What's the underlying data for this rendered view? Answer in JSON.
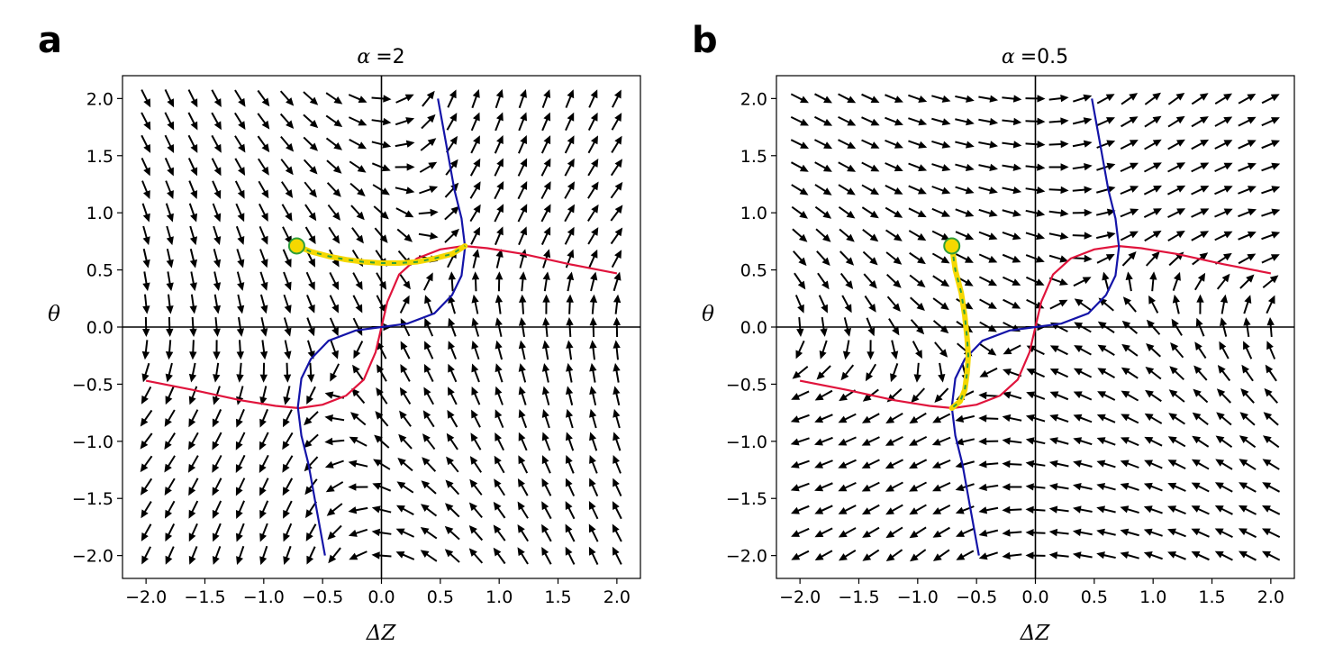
{
  "chart_data": [
    {
      "type": "vector_field",
      "panel_label": "a",
      "title_var": "α",
      "title_eq": "=2",
      "alpha": 2,
      "xlabel": "ΔZ",
      "ylabel": "θ",
      "xlim": [
        -2.2,
        2.2
      ],
      "ylim": [
        -2.2,
        2.2
      ],
      "xticks": [
        -2.0,
        -1.5,
        -1.0,
        -0.5,
        0.0,
        0.5,
        1.0,
        1.5,
        2.0
      ],
      "yticks": [
        -2.0,
        -1.5,
        -1.0,
        -0.5,
        0.0,
        0.5,
        1.0,
        1.5,
        2.0
      ],
      "xtick_labels": [
        "−2.0",
        "−1.5",
        "−1.0",
        "−0.5",
        "0.0",
        "0.5",
        "1.0",
        "1.5",
        "2.0"
      ],
      "ytick_labels": [
        "−2.0",
        "−1.5",
        "−1.0",
        "−0.5",
        "0.0",
        "0.5",
        "1.0",
        "1.5",
        "2.0"
      ],
      "grid_range": [
        -2.0,
        2.0
      ],
      "grid_step": 0.2,
      "nullclines": [
        {
          "name": "red nullcline",
          "color": "#e0143c",
          "points": [
            [
              -2.0,
              -0.47
            ],
            [
              -1.6,
              -0.55
            ],
            [
              -1.2,
              -0.64
            ],
            [
              -0.9,
              -0.69
            ],
            [
              -0.7,
              -0.71
            ],
            [
              -0.5,
              -0.68
            ],
            [
              -0.3,
              -0.6
            ],
            [
              -0.15,
              -0.46
            ],
            [
              -0.05,
              -0.22
            ],
            [
              0.0,
              0.0
            ],
            [
              0.05,
              0.22
            ],
            [
              0.15,
              0.46
            ],
            [
              0.3,
              0.6
            ],
            [
              0.5,
              0.68
            ],
            [
              0.7,
              0.71
            ],
            [
              0.9,
              0.69
            ],
            [
              1.2,
              0.64
            ],
            [
              1.6,
              0.55
            ],
            [
              2.0,
              0.47
            ]
          ]
        },
        {
          "name": "blue nullcline",
          "color": "#1414a8",
          "points": [
            [
              -0.48,
              -2.0
            ],
            [
              -0.55,
              -1.6
            ],
            [
              -0.62,
              -1.2
            ],
            [
              -0.68,
              -0.95
            ],
            [
              -0.71,
              -0.7
            ],
            [
              -0.68,
              -0.45
            ],
            [
              -0.6,
              -0.28
            ],
            [
              -0.45,
              -0.12
            ],
            [
              -0.22,
              -0.03
            ],
            [
              0.0,
              0.0
            ],
            [
              0.22,
              0.03
            ],
            [
              0.45,
              0.12
            ],
            [
              0.6,
              0.28
            ],
            [
              0.68,
              0.45
            ],
            [
              0.71,
              0.7
            ],
            [
              0.68,
              0.95
            ],
            [
              0.62,
              1.2
            ],
            [
              0.55,
              1.6
            ],
            [
              0.48,
              2.0
            ]
          ]
        }
      ],
      "trajectory": {
        "start": [
          -0.72,
          0.71
        ],
        "points": [
          [
            -0.72,
            0.71
          ],
          [
            -0.6,
            0.66
          ],
          [
            -0.45,
            0.62
          ],
          [
            -0.3,
            0.59
          ],
          [
            -0.15,
            0.57
          ],
          [
            0.0,
            0.56
          ],
          [
            0.15,
            0.56
          ],
          [
            0.3,
            0.57
          ],
          [
            0.45,
            0.6
          ],
          [
            0.6,
            0.64
          ],
          [
            0.71,
            0.71
          ]
        ]
      }
    },
    {
      "type": "vector_field",
      "panel_label": "b",
      "title_var": "α",
      "title_eq": "=0.5",
      "alpha": 0.5,
      "xlabel": "ΔZ",
      "ylabel": "θ",
      "xlim": [
        -2.2,
        2.2
      ],
      "ylim": [
        -2.2,
        2.2
      ],
      "xticks": [
        -2.0,
        -1.5,
        -1.0,
        -0.5,
        0.0,
        0.5,
        1.0,
        1.5,
        2.0
      ],
      "yticks": [
        -2.0,
        -1.5,
        -1.0,
        -0.5,
        0.0,
        0.5,
        1.0,
        1.5,
        2.0
      ],
      "xtick_labels": [
        "−2.0",
        "−1.5",
        "−1.0",
        "−0.5",
        "0.0",
        "0.5",
        "1.0",
        "1.5",
        "2.0"
      ],
      "ytick_labels": [
        "−2.0",
        "−1.5",
        "−1.0",
        "−0.5",
        "0.0",
        "0.5",
        "1.0",
        "1.5",
        "2.0"
      ],
      "grid_range": [
        -2.0,
        2.0
      ],
      "grid_step": 0.2,
      "nullclines": [
        {
          "name": "red nullcline",
          "color": "#e0143c",
          "points": [
            [
              -2.0,
              -0.47
            ],
            [
              -1.6,
              -0.55
            ],
            [
              -1.2,
              -0.64
            ],
            [
              -0.9,
              -0.69
            ],
            [
              -0.7,
              -0.71
            ],
            [
              -0.5,
              -0.68
            ],
            [
              -0.3,
              -0.6
            ],
            [
              -0.15,
              -0.46
            ],
            [
              -0.05,
              -0.22
            ],
            [
              0.0,
              0.0
            ],
            [
              0.05,
              0.22
            ],
            [
              0.15,
              0.46
            ],
            [
              0.3,
              0.6
            ],
            [
              0.5,
              0.68
            ],
            [
              0.7,
              0.71
            ],
            [
              0.9,
              0.69
            ],
            [
              1.2,
              0.64
            ],
            [
              1.6,
              0.55
            ],
            [
              2.0,
              0.47
            ]
          ]
        },
        {
          "name": "blue nullcline",
          "color": "#1414a8",
          "points": [
            [
              -0.48,
              -2.0
            ],
            [
              -0.55,
              -1.6
            ],
            [
              -0.62,
              -1.2
            ],
            [
              -0.68,
              -0.95
            ],
            [
              -0.71,
              -0.7
            ],
            [
              -0.68,
              -0.45
            ],
            [
              -0.6,
              -0.28
            ],
            [
              -0.45,
              -0.12
            ],
            [
              -0.22,
              -0.03
            ],
            [
              0.0,
              0.0
            ],
            [
              0.22,
              0.03
            ],
            [
              0.45,
              0.12
            ],
            [
              0.6,
              0.28
            ],
            [
              0.68,
              0.45
            ],
            [
              0.71,
              0.7
            ],
            [
              0.68,
              0.95
            ],
            [
              0.62,
              1.2
            ],
            [
              0.55,
              1.6
            ],
            [
              0.48,
              2.0
            ]
          ]
        }
      ],
      "trajectory": {
        "start": [
          -0.71,
          0.71
        ],
        "points": [
          [
            -0.71,
            0.71
          ],
          [
            -0.68,
            0.5
          ],
          [
            -0.63,
            0.3
          ],
          [
            -0.6,
            0.1
          ],
          [
            -0.58,
            -0.1
          ],
          [
            -0.57,
            -0.25
          ],
          [
            -0.58,
            -0.4
          ],
          [
            -0.6,
            -0.55
          ],
          [
            -0.64,
            -0.65
          ],
          [
            -0.71,
            -0.71
          ]
        ]
      }
    }
  ],
  "colors": {
    "arrow": "#000000",
    "trajectory_fill": "#f5d800",
    "trajectory_marker": "#2e9e3a",
    "start_fill": "#f5d800",
    "start_edge": "#2e9e3a"
  }
}
